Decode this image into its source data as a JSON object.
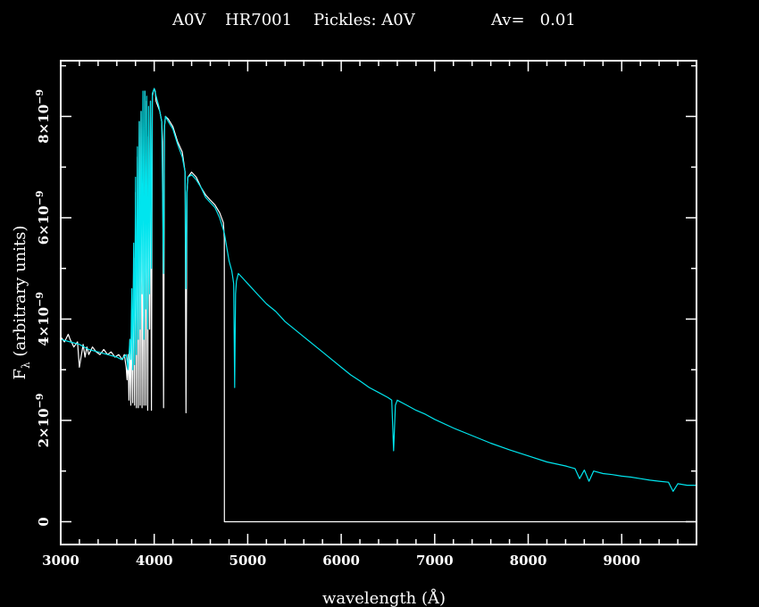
{
  "header": {
    "spectral_type": "A0V",
    "star_name": "HR7001",
    "template": "Pickles: A0V",
    "extinction": "Av=   0.01"
  },
  "chart_data": {
    "type": "line",
    "title": "A0V   HR7001   Pickles: A0V        Av=   0.01",
    "xlabel": "wavelength (Å)",
    "ylabel": "F_λ (arbitrary units)",
    "ylabel_main": "F",
    "ylabel_sub": "λ",
    "ylabel_rest": " (arbitrary units)",
    "xlim": [
      3000,
      9800
    ],
    "ylim": [
      -4.5e-10,
      9.1e-09
    ],
    "grid": false,
    "x_ticks": [
      {
        "value": 3000,
        "label": "3000"
      },
      {
        "value": 4000,
        "label": "4000"
      },
      {
        "value": 5000,
        "label": "5000"
      },
      {
        "value": 6000,
        "label": "6000"
      },
      {
        "value": 7000,
        "label": "7000"
      },
      {
        "value": 8000,
        "label": "8000"
      },
      {
        "value": 9000,
        "label": "9000"
      }
    ],
    "x_minor_step": 200,
    "y_ticks": [
      {
        "value": 0,
        "mantissa": "0",
        "exponent": ""
      },
      {
        "value": 2e-09,
        "mantissa": "2×10",
        "exponent": "−9"
      },
      {
        "value": 4e-09,
        "mantissa": "4×10",
        "exponent": "−9"
      },
      {
        "value": 6e-09,
        "mantissa": "6×10",
        "exponent": "−9"
      },
      {
        "value": 8e-09,
        "mantissa": "8×10",
        "exponent": "−9"
      }
    ],
    "y_minor_step": 1e-09,
    "series": [
      {
        "color": "#ffffff",
        "x": [
          3000,
          3040,
          3080,
          3100,
          3140,
          3180,
          3200,
          3240,
          3260,
          3280,
          3300,
          3340,
          3380,
          3420,
          3460,
          3500,
          3540,
          3580,
          3620,
          3660,
          3680,
          3700,
          3710,
          3720,
          3730,
          3740,
          3750,
          3760,
          3770,
          3780,
          3790,
          3800,
          3810,
          3820,
          3830,
          3840,
          3850,
          3860,
          3870,
          3880,
          3890,
          3900,
          3910,
          3920,
          3930,
          3940,
          3950,
          3960,
          3970,
          3980,
          3990,
          4000,
          4010,
          4020,
          4040,
          4060,
          4080,
          4090,
          4100,
          4110,
          4120,
          4150,
          4200,
          4250,
          4300,
          4330,
          4340,
          4350,
          4360,
          4400,
          4450,
          4500,
          4550,
          4600,
          4650,
          4700,
          4740,
          4750,
          4751,
          9800
        ],
        "y": [
          3.65e-09,
          3.55e-09,
          3.7e-09,
          3.6e-09,
          3.45e-09,
          3.55e-09,
          3.05e-09,
          3.5e-09,
          3.25e-09,
          3.45e-09,
          3.3e-09,
          3.45e-09,
          3.35e-09,
          3.3e-09,
          3.4e-09,
          3.3e-09,
          3.35e-09,
          3.25e-09,
          3.3e-09,
          3.2e-09,
          3.3e-09,
          3.05e-09,
          2.8e-09,
          3.3e-09,
          2.4e-09,
          3.6e-09,
          2.3e-09,
          4.2e-09,
          2.35e-09,
          5.2e-09,
          2.3e-09,
          6.5e-09,
          2.25e-09,
          7.2e-09,
          2.25e-09,
          7.9e-09,
          2.3e-09,
          8.1e-09,
          2.25e-09,
          6.5e-09,
          2.3e-09,
          8.5e-09,
          2.3e-09,
          8.3e-09,
          2.2e-09,
          7.6e-09,
          3.8e-09,
          8.3e-09,
          2.2e-09,
          8.4e-09,
          8.5e-09,
          8.55e-09,
          8.5e-09,
          8.3e-09,
          8.2e-09,
          8.1e-09,
          7.9e-09,
          7.5e-09,
          2.25e-09,
          7.8e-09,
          8e-09,
          7.95e-09,
          7.8e-09,
          7.5e-09,
          7.3e-09,
          6.9e-09,
          2.15e-09,
          6.5e-09,
          6.8e-09,
          6.9e-09,
          6.8e-09,
          6.6e-09,
          6.45e-09,
          6.35e-09,
          6.25e-09,
          6.1e-09,
          5.9e-09,
          5.6e-09,
          0.0,
          0.0
        ]
      },
      {
        "color": "#00e5ee",
        "x": [
          3000,
          3100,
          3200,
          3300,
          3400,
          3500,
          3600,
          3650,
          3700,
          3720,
          3740,
          3750,
          3760,
          3770,
          3780,
          3790,
          3800,
          3810,
          3820,
          3830,
          3840,
          3850,
          3860,
          3870,
          3880,
          3890,
          3900,
          3910,
          3920,
          3930,
          3940,
          3950,
          3960,
          3970,
          3980,
          4000,
          4020,
          4050,
          4080,
          4100,
          4110,
          4120,
          4150,
          4200,
          4250,
          4300,
          4330,
          4340,
          4350,
          4360,
          4400,
          4450,
          4500,
          4550,
          4600,
          4650,
          4700,
          4750,
          4800,
          4830,
          4850,
          4860,
          4870,
          4880,
          4900,
          4950,
          5000,
          5100,
          5200,
          5300,
          5400,
          5500,
          5600,
          5700,
          5800,
          5900,
          6000,
          6100,
          6200,
          6300,
          6400,
          6500,
          6540,
          6560,
          6580,
          6600,
          6700,
          6800,
          6900,
          7000,
          7200,
          7400,
          7600,
          7800,
          8000,
          8200,
          8400,
          8500,
          8550,
          8600,
          8650,
          8700,
          8800,
          8900,
          9000,
          9100,
          9200,
          9300,
          9400,
          9500,
          9550,
          9600,
          9700,
          9800
        ],
        "y": [
          3.6e-09,
          3.55e-09,
          3.5e-09,
          3.4e-09,
          3.35e-09,
          3.3e-09,
          3.25e-09,
          3.2e-09,
          3.3e-09,
          3e-09,
          3.6e-09,
          3.2e-09,
          4.6e-09,
          3e-09,
          5.5e-09,
          3.1e-09,
          6.8e-09,
          3.3e-09,
          7.4e-09,
          3.6e-09,
          7.9e-09,
          3.8e-09,
          8.1e-09,
          4.5e-09,
          8.5e-09,
          3.6e-09,
          8.5e-09,
          4.2e-09,
          8.4e-09,
          3.8e-09,
          8.2e-09,
          4.5e-09,
          8.3e-09,
          5e-09,
          8.45e-09,
          8.55e-09,
          8.4e-09,
          8.2e-09,
          7.9e-09,
          4.9e-09,
          7.8e-09,
          8e-09,
          7.9e-09,
          7.75e-09,
          7.45e-09,
          7.2e-09,
          6.9e-09,
          4.6e-09,
          6.5e-09,
          6.8e-09,
          6.85e-09,
          6.75e-09,
          6.6e-09,
          6.4e-09,
          6.3e-09,
          6.2e-09,
          6e-09,
          5.7e-09,
          5.15e-09,
          4.95e-09,
          4.7e-09,
          2.65e-09,
          4.5e-09,
          4.75e-09,
          4.9e-09,
          4.8e-09,
          4.7e-09,
          4.5e-09,
          4.3e-09,
          4.15e-09,
          3.95e-09,
          3.8e-09,
          3.65e-09,
          3.5e-09,
          3.35e-09,
          3.2e-09,
          3.05e-09,
          2.9e-09,
          2.78e-09,
          2.65e-09,
          2.55e-09,
          2.45e-09,
          2.4e-09,
          1.4e-09,
          2.3e-09,
          2.4e-09,
          2.3e-09,
          2.2e-09,
          2.12e-09,
          2.02e-09,
          1.85e-09,
          1.7e-09,
          1.55e-09,
          1.42e-09,
          1.3e-09,
          1.18e-09,
          1.1e-09,
          1.05e-09,
          8.5e-10,
          1.02e-09,
          8e-10,
          1e-09,
          9.5e-10,
          9.3e-10,
          9e-10,
          8.8e-10,
          8.5e-10,
          8.2e-10,
          8e-10,
          7.8e-10,
          6e-10,
          7.5e-10,
          7.2e-10,
          7.2e-10
        ]
      }
    ]
  }
}
